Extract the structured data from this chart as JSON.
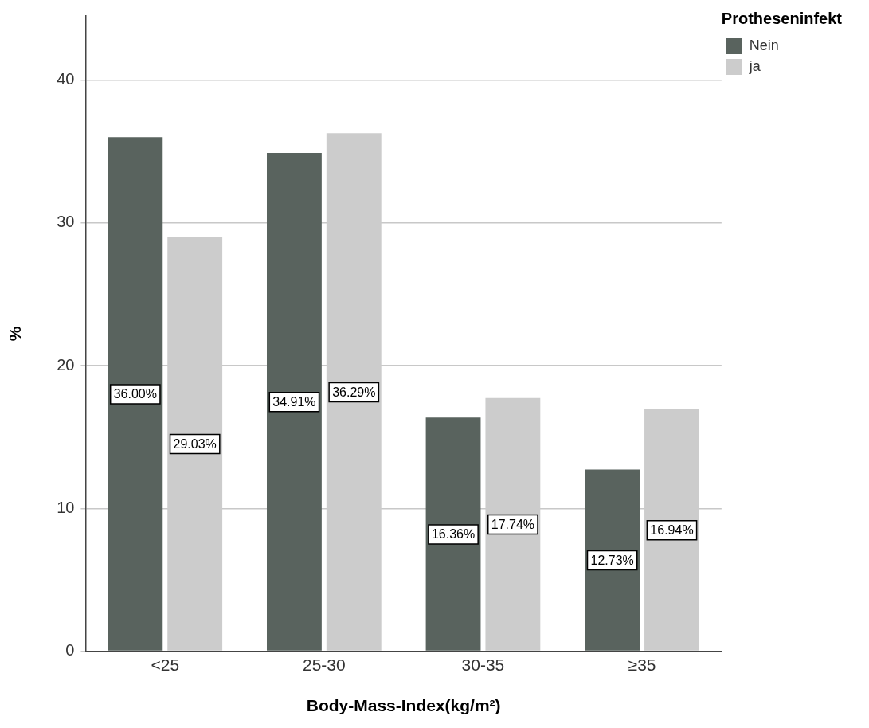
{
  "chart_data": {
    "type": "bar",
    "xlabel": "Body-Mass-Index(kg/m²)",
    "ylabel": "%",
    "legend_title": "Protheseninfekt",
    "legend": "top right",
    "grid": "y",
    "categories": [
      "<25",
      "25-30",
      "30-35",
      "≥35"
    ],
    "ylim": [
      0,
      44.5
    ],
    "yticks": [
      0,
      10,
      20,
      30,
      40
    ],
    "series": [
      {
        "name": "Nein",
        "color": "#59635e",
        "values": [
          36.0,
          34.91,
          16.36,
          12.73
        ],
        "value_labels": [
          "36.00%",
          "34.91%",
          "16.36%",
          "12.73%"
        ]
      },
      {
        "name": "ja",
        "color": "#cccccc",
        "values": [
          29.03,
          36.29,
          17.74,
          16.94
        ],
        "value_labels": [
          "29.03%",
          "36.29%",
          "17.74%",
          "16.94%"
        ]
      }
    ]
  }
}
